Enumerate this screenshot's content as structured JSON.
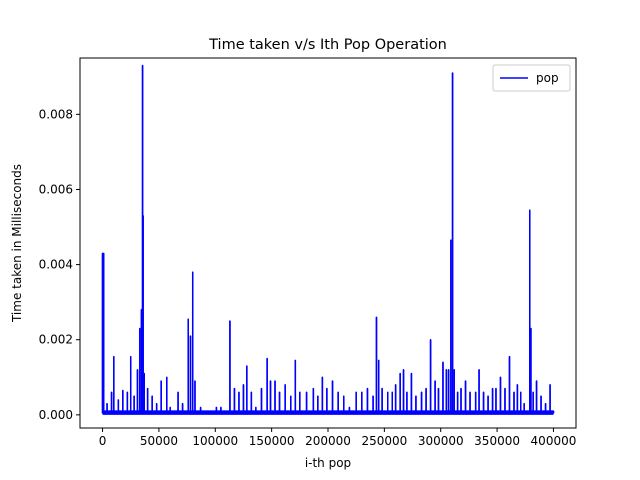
{
  "chart_data": {
    "type": "line",
    "title": "Time taken v/s Ith Pop Operation",
    "xlabel": "i-th pop",
    "ylabel": "Time taken in Milliseconds",
    "xlim": [
      -20000,
      420000
    ],
    "ylim": [
      -0.00035,
      0.0095
    ],
    "xticks": [
      0,
      50000,
      100000,
      150000,
      200000,
      250000,
      300000,
      350000,
      400000
    ],
    "yticks": [
      0.0,
      0.002,
      0.004,
      0.006,
      0.008
    ],
    "xtick_labels": [
      "0",
      "50000",
      "100000",
      "150000",
      "200000",
      "250000",
      "300000",
      "350000",
      "400000"
    ],
    "ytick_labels": [
      "0.000",
      "0.002",
      "0.004",
      "0.006",
      "0.008"
    ],
    "grid": false,
    "legend": "top-right",
    "series": [
      {
        "name": "pop",
        "color": "#0000ff",
        "baseline": 5e-05,
        "spikes": [
          [
            0,
            0.0043
          ],
          [
            1000,
            0.0043
          ],
          [
            4000,
            0.0003
          ],
          [
            8000,
            0.0006
          ],
          [
            10000,
            0.00155
          ],
          [
            14000,
            0.0004
          ],
          [
            18000,
            0.00065
          ],
          [
            22000,
            0.0006
          ],
          [
            25000,
            0.00155
          ],
          [
            28000,
            0.0005
          ],
          [
            31000,
            0.0012
          ],
          [
            33000,
            0.0023
          ],
          [
            34500,
            0.0028
          ],
          [
            35500,
            0.0093
          ],
          [
            36000,
            0.0053
          ],
          [
            37000,
            0.0011
          ],
          [
            40000,
            0.0007
          ],
          [
            44000,
            0.0005
          ],
          [
            48000,
            0.0003
          ],
          [
            52000,
            0.0009
          ],
          [
            57000,
            0.001
          ],
          [
            60000,
            0.0002
          ],
          [
            67000,
            0.0006
          ],
          [
            71000,
            0.0003
          ],
          [
            76000,
            0.00255
          ],
          [
            78000,
            0.0021
          ],
          [
            80000,
            0.0038
          ],
          [
            82000,
            0.0009
          ],
          [
            87000,
            0.0002
          ],
          [
            96000,
            0.0001
          ],
          [
            101000,
            0.0002
          ],
          [
            105000,
            0.0002
          ],
          [
            113000,
            0.0025
          ],
          [
            117000,
            0.0007
          ],
          [
            121000,
            0.0006
          ],
          [
            125000,
            0.0008
          ],
          [
            128000,
            0.0013
          ],
          [
            132000,
            0.0006
          ],
          [
            136000,
            0.0002
          ],
          [
            141000,
            0.0007
          ],
          [
            146000,
            0.0015
          ],
          [
            149000,
            0.0009
          ],
          [
            153000,
            0.0009
          ],
          [
            157000,
            0.0006
          ],
          [
            162000,
            0.0008
          ],
          [
            167000,
            0.0005
          ],
          [
            171000,
            0.00145
          ],
          [
            175000,
            0.0006
          ],
          [
            181000,
            0.0006
          ],
          [
            187000,
            0.0007
          ],
          [
            191000,
            0.0005
          ],
          [
            195000,
            0.001
          ],
          [
            199000,
            0.0007
          ],
          [
            204000,
            0.0009
          ],
          [
            209000,
            0.0006
          ],
          [
            214000,
            0.0005
          ],
          [
            219000,
            0.0002
          ],
          [
            225000,
            0.0006
          ],
          [
            230000,
            0.0006
          ],
          [
            235000,
            0.0007
          ],
          [
            240000,
            0.0005
          ],
          [
            243000,
            0.0026
          ],
          [
            245000,
            0.00145
          ],
          [
            248000,
            0.0007
          ],
          [
            253000,
            0.0006
          ],
          [
            257000,
            0.0006
          ],
          [
            260000,
            0.0008
          ],
          [
            264000,
            0.0011
          ],
          [
            267000,
            0.0012
          ],
          [
            270000,
            0.0006
          ],
          [
            274000,
            0.0011
          ],
          [
            278000,
            0.0005
          ],
          [
            283000,
            0.0006
          ],
          [
            287000,
            0.0007
          ],
          [
            291000,
            0.002
          ],
          [
            295000,
            0.0009
          ],
          [
            298000,
            0.0007
          ],
          [
            302000,
            0.0014
          ],
          [
            305000,
            0.0012
          ],
          [
            307000,
            0.0012
          ],
          [
            309000,
            0.00465
          ],
          [
            310500,
            0.0091
          ],
          [
            312000,
            0.0012
          ],
          [
            315000,
            0.0006
          ],
          [
            318000,
            0.0007
          ],
          [
            322000,
            0.0009
          ],
          [
            326000,
            0.0006
          ],
          [
            331000,
            0.0006
          ],
          [
            334000,
            0.0012
          ],
          [
            338000,
            0.0006
          ],
          [
            342000,
            0.0005
          ],
          [
            346000,
            0.0007
          ],
          [
            349000,
            0.0007
          ],
          [
            353000,
            0.001
          ],
          [
            357000,
            0.0007
          ],
          [
            361000,
            0.00155
          ],
          [
            365000,
            0.0006
          ],
          [
            368000,
            0.0008
          ],
          [
            371000,
            0.0006
          ],
          [
            374000,
            0.0003
          ],
          [
            379000,
            0.00545
          ],
          [
            380000,
            0.0023
          ],
          [
            382000,
            0.0006
          ],
          [
            385000,
            0.0009
          ],
          [
            389000,
            0.0005
          ],
          [
            393000,
            0.0003
          ],
          [
            397000,
            0.0008
          ],
          [
            400000,
            0.0001
          ]
        ]
      }
    ]
  }
}
